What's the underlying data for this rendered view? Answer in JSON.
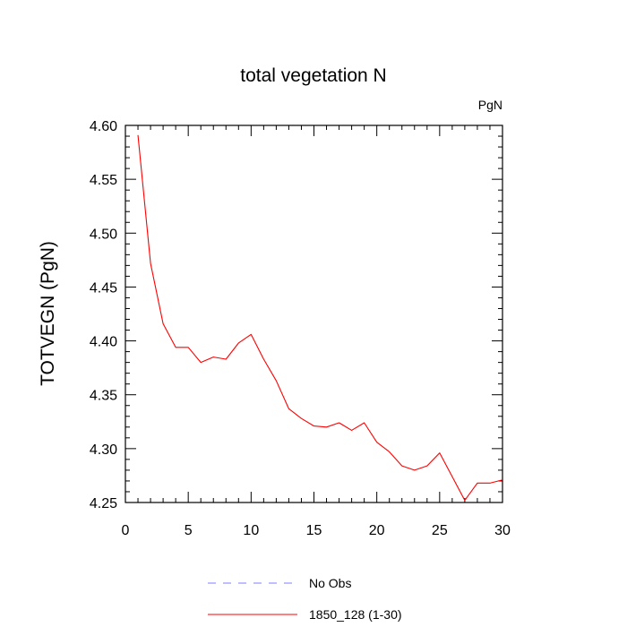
{
  "chart_data": {
    "type": "line",
    "title": "total vegetation N",
    "units_label": "PgN",
    "xlabel": "",
    "ylabel": "TOTVEGN  (PgN)",
    "xlim": [
      0,
      30
    ],
    "ylim": [
      4.25,
      4.6
    ],
    "x_ticks": [
      0,
      5,
      10,
      15,
      20,
      25,
      30
    ],
    "y_ticks": [
      4.25,
      4.3,
      4.35,
      4.4,
      4.45,
      4.5,
      4.55,
      4.6
    ],
    "x_tick_labels": [
      "0",
      "5",
      "10",
      "15",
      "20",
      "25",
      "30"
    ],
    "y_tick_labels": [
      "4.25",
      "4.30",
      "4.35",
      "4.40",
      "4.45",
      "4.50",
      "4.55",
      "4.60"
    ],
    "series": [
      {
        "name": "1850_128 (1-30)",
        "color": "#ff0000",
        "style": "solid",
        "x": [
          1,
          2,
          3,
          4,
          5,
          6,
          7,
          8,
          9,
          10,
          11,
          12,
          13,
          14,
          15,
          16,
          17,
          18,
          19,
          20,
          21,
          22,
          23,
          24,
          25,
          26,
          27,
          28,
          29,
          30
        ],
        "values": [
          4.591,
          4.472,
          4.416,
          4.394,
          4.394,
          4.38,
          4.385,
          4.383,
          4.398,
          4.406,
          4.383,
          4.363,
          4.337,
          4.328,
          4.321,
          4.32,
          4.324,
          4.317,
          4.324,
          4.306,
          4.297,
          4.284,
          4.28,
          4.284,
          4.296,
          4.274,
          4.252,
          4.268,
          4.268,
          4.271
        ]
      }
    ],
    "legend": [
      {
        "label": "No Obs",
        "color": "#7f7fff",
        "style": "dashed"
      },
      {
        "label": "1850_128 (1-30)",
        "color": "#ff0000",
        "style": "solid"
      }
    ]
  }
}
